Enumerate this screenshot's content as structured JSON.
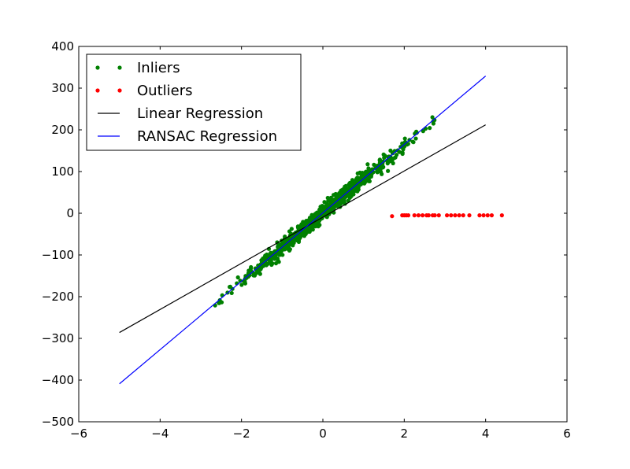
{
  "chart_data": {
    "type": "scatter",
    "title": "",
    "xlabel": "",
    "ylabel": "",
    "xlim": [
      -6,
      6
    ],
    "ylim": [
      -500,
      400
    ],
    "xticks": [
      -6,
      -4,
      -2,
      0,
      2,
      4,
      6
    ],
    "yticks": [
      -500,
      -400,
      -300,
      -200,
      -100,
      0,
      100,
      200,
      300,
      400
    ],
    "grid": false,
    "legend_position": "top-left",
    "series": [
      {
        "name": "Inliers",
        "kind": "scatter",
        "color": "#008000",
        "count": 900,
        "x_range": [
          -3.05,
          2.8
        ],
        "approx_slope": 82,
        "approx_intercept": 0,
        "approx_noise": 9
      },
      {
        "name": "Outliers",
        "kind": "scatter",
        "color": "#ff0000",
        "points": [
          [
            1.7,
            -7
          ],
          [
            1.95,
            -5
          ],
          [
            2.0,
            -5
          ],
          [
            2.05,
            -5
          ],
          [
            2.1,
            -5
          ],
          [
            2.25,
            -5
          ],
          [
            2.35,
            -5
          ],
          [
            2.45,
            -5
          ],
          [
            2.55,
            -5
          ],
          [
            2.6,
            -5
          ],
          [
            2.7,
            -5
          ],
          [
            2.75,
            -5
          ],
          [
            2.85,
            -5
          ],
          [
            3.05,
            -5
          ],
          [
            3.15,
            -5
          ],
          [
            3.25,
            -5
          ],
          [
            3.35,
            -5
          ],
          [
            3.45,
            -5
          ],
          [
            3.6,
            -5
          ],
          [
            3.85,
            -5
          ],
          [
            3.95,
            -5
          ],
          [
            4.05,
            -5
          ],
          [
            4.15,
            -5
          ],
          [
            4.4,
            -5
          ]
        ]
      },
      {
        "name": "Linear Regression",
        "kind": "line",
        "color": "#000000",
        "x": [
          -5,
          4
        ],
        "y": [
          -286,
          212
        ]
      },
      {
        "name": "RANSAC Regression",
        "kind": "line",
        "color": "#0000ff",
        "x": [
          -5,
          4
        ],
        "y": [
          -409,
          329
        ]
      }
    ]
  }
}
